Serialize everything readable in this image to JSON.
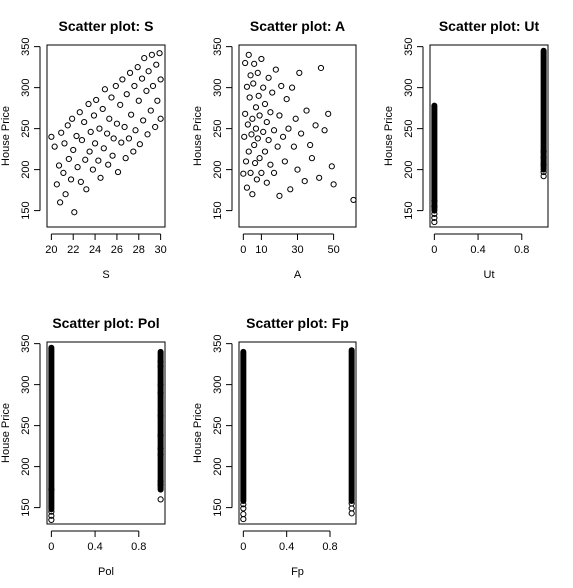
{
  "chart_data": [
    {
      "type": "scatter",
      "title": "Scatter plot: S",
      "xlabel": "S",
      "ylabel": "House Price",
      "xlim": [
        19.6,
        30.4
      ],
      "ylim": [
        130,
        352
      ],
      "xticks": [
        20,
        22,
        24,
        26,
        28,
        30
      ],
      "yticks": [
        150,
        200,
        250,
        300,
        350
      ],
      "points": [
        [
          20.0,
          240
        ],
        [
          20.3,
          228
        ],
        [
          20.5,
          182
        ],
        [
          20.7,
          205
        ],
        [
          20.8,
          160
        ],
        [
          20.9,
          245
        ],
        [
          21.1,
          196
        ],
        [
          21.2,
          232
        ],
        [
          21.3,
          170
        ],
        [
          21.5,
          254
        ],
        [
          21.6,
          213
        ],
        [
          21.8,
          188
        ],
        [
          21.9,
          262
        ],
        [
          22.0,
          224
        ],
        [
          22.1,
          148
        ],
        [
          22.3,
          241
        ],
        [
          22.4,
          203
        ],
        [
          22.6,
          270
        ],
        [
          22.7,
          185
        ],
        [
          22.8,
          236
        ],
        [
          23.0,
          258
        ],
        [
          23.1,
          212
        ],
        [
          23.2,
          176
        ],
        [
          23.4,
          280
        ],
        [
          23.5,
          222
        ],
        [
          23.6,
          246
        ],
        [
          23.8,
          200
        ],
        [
          23.9,
          266
        ],
        [
          24.0,
          232
        ],
        [
          24.1,
          285
        ],
        [
          24.3,
          211
        ],
        [
          24.4,
          250
        ],
        [
          24.5,
          190
        ],
        [
          24.7,
          274
        ],
        [
          24.8,
          226
        ],
        [
          24.9,
          298
        ],
        [
          25.1,
          244
        ],
        [
          25.2,
          206
        ],
        [
          25.3,
          262
        ],
        [
          25.5,
          288
        ],
        [
          25.6,
          217
        ],
        [
          25.7,
          238
        ],
        [
          25.9,
          302
        ],
        [
          26.0,
          256
        ],
        [
          26.1,
          197
        ],
        [
          26.3,
          279
        ],
        [
          26.4,
          233
        ],
        [
          26.5,
          310
        ],
        [
          26.7,
          252
        ],
        [
          26.8,
          214
        ],
        [
          26.9,
          292
        ],
        [
          27.1,
          238
        ],
        [
          27.2,
          318
        ],
        [
          27.3,
          267
        ],
        [
          27.5,
          222
        ],
        [
          27.6,
          302
        ],
        [
          27.7,
          248
        ],
        [
          27.9,
          325
        ],
        [
          28.0,
          284
        ],
        [
          28.1,
          231
        ],
        [
          28.3,
          311
        ],
        [
          28.4,
          260
        ],
        [
          28.5,
          336
        ],
        [
          28.7,
          296
        ],
        [
          28.8,
          243
        ],
        [
          28.9,
          320
        ],
        [
          29.1,
          272
        ],
        [
          29.2,
          340
        ],
        [
          29.3,
          302
        ],
        [
          29.5,
          252
        ],
        [
          29.6,
          328
        ],
        [
          29.7,
          284
        ],
        [
          29.9,
          342
        ],
        [
          30.0,
          310
        ],
        [
          30.0,
          262
        ]
      ]
    },
    {
      "type": "scatter",
      "title": "Scatter plot: A",
      "xlabel": "A",
      "ylabel": "House Price",
      "xlim": [
        -2.4,
        62.4
      ],
      "ylim": [
        130,
        352
      ],
      "xticks": [
        0,
        10,
        30,
        50
      ],
      "yticks": [
        150,
        200,
        250,
        300,
        350
      ],
      "points": [
        [
          0,
          195
        ],
        [
          0.5,
          240
        ],
        [
          1,
          330
        ],
        [
          1,
          268
        ],
        [
          1.5,
          210
        ],
        [
          2,
          301
        ],
        [
          2,
          178
        ],
        [
          2.5,
          255
        ],
        [
          3,
          222
        ],
        [
          3,
          340
        ],
        [
          3.5,
          288
        ],
        [
          4,
          196
        ],
        [
          4,
          315
        ],
        [
          4.5,
          243
        ],
        [
          5,
          262
        ],
        [
          5,
          170
        ],
        [
          5.5,
          305
        ],
        [
          6,
          230
        ],
        [
          6,
          329
        ],
        [
          6.5,
          208
        ],
        [
          7,
          276
        ],
        [
          7,
          250
        ],
        [
          7.5,
          188
        ],
        [
          8,
          318
        ],
        [
          8,
          238
        ],
        [
          8.5,
          290
        ],
        [
          9,
          214
        ],
        [
          9,
          266
        ],
        [
          10,
          335
        ],
        [
          10,
          196
        ],
        [
          11,
          246
        ],
        [
          11,
          300
        ],
        [
          12,
          222
        ],
        [
          12,
          280
        ],
        [
          13,
          258
        ],
        [
          13,
          184
        ],
        [
          14,
          312
        ],
        [
          14,
          236
        ],
        [
          15,
          206
        ],
        [
          15,
          270
        ],
        [
          16,
          294
        ],
        [
          17,
          248
        ],
        [
          17,
          196
        ],
        [
          18,
          322
        ],
        [
          19,
          228
        ],
        [
          20,
          266
        ],
        [
          20,
          168
        ],
        [
          21,
          302
        ],
        [
          22,
          240
        ],
        [
          23,
          210
        ],
        [
          24,
          286
        ],
        [
          25,
          250
        ],
        [
          26,
          176
        ],
        [
          27,
          300
        ],
        [
          28,
          228
        ],
        [
          29,
          262
        ],
        [
          30,
          200
        ],
        [
          31,
          318
        ],
        [
          32,
          244
        ],
        [
          34,
          186
        ],
        [
          35,
          272
        ],
        [
          37,
          230
        ],
        [
          38,
          214
        ],
        [
          40,
          254
        ],
        [
          42,
          190
        ],
        [
          43,
          324
        ],
        [
          45,
          248
        ],
        [
          47,
          268
        ],
        [
          49,
          204
        ],
        [
          50,
          182
        ],
        [
          61,
          163
        ]
      ]
    },
    {
      "type": "scatter",
      "title": "Scatter plot: Ut",
      "xlabel": "Ut",
      "ylabel": "House Price",
      "xlim": [
        -0.04,
        1.04
      ],
      "ylim": [
        130,
        352
      ],
      "xticks": [
        0.0,
        0.4,
        0.8
      ],
      "yticks": [
        150,
        200,
        250,
        300,
        350
      ],
      "groups": [
        {
          "x": 0,
          "ymin": 150,
          "ymax": 278
        },
        {
          "x": 1,
          "ymin": 200,
          "ymax": 345
        }
      ],
      "points": [
        [
          0,
          136
        ],
        [
          0,
          141
        ],
        [
          0,
          146
        ],
        [
          0,
          155
        ],
        [
          0,
          162
        ],
        [
          1,
          192
        ],
        [
          1,
          197
        ],
        [
          1,
          206
        ],
        [
          1,
          215
        ],
        [
          1,
          222
        ]
      ]
    },
    {
      "type": "scatter",
      "title": "Scatter plot: Pol",
      "xlabel": "Pol",
      "ylabel": "House Price",
      "xlim": [
        -0.04,
        1.04
      ],
      "ylim": [
        130,
        352
      ],
      "xticks": [
        0.0,
        0.4,
        0.8
      ],
      "yticks": [
        150,
        200,
        250,
        300,
        350
      ],
      "groups": [
        {
          "x": 0,
          "ymin": 148,
          "ymax": 345
        },
        {
          "x": 1,
          "ymin": 172,
          "ymax": 340
        }
      ],
      "points": [
        [
          0,
          135
        ],
        [
          0,
          140
        ],
        [
          0,
          145
        ],
        [
          0,
          172
        ],
        [
          1,
          160
        ],
        [
          1,
          178
        ],
        [
          1,
          182
        ],
        [
          1,
          215
        ],
        [
          1,
          222
        ],
        [
          1,
          238
        ],
        [
          1,
          262
        ],
        [
          1,
          290
        ],
        [
          1,
          300
        ],
        [
          1,
          322
        ],
        [
          1,
          328
        ]
      ]
    },
    {
      "type": "scatter",
      "title": "Scatter plot: Fp",
      "xlabel": "Fp",
      "ylabel": "House Price",
      "xlim": [
        -0.04,
        1.04
      ],
      "ylim": [
        130,
        352
      ],
      "xticks": [
        0.0,
        0.4,
        0.8
      ],
      "yticks": [
        150,
        200,
        250,
        300,
        350
      ],
      "groups": [
        {
          "x": 0,
          "ymin": 158,
          "ymax": 340
        },
        {
          "x": 1,
          "ymin": 158,
          "ymax": 342
        }
      ],
      "points": [
        [
          0,
          136
        ],
        [
          0,
          142
        ],
        [
          0,
          149
        ],
        [
          0,
          154
        ],
        [
          1,
          143
        ],
        [
          1,
          149
        ],
        [
          1,
          155
        ]
      ]
    }
  ]
}
